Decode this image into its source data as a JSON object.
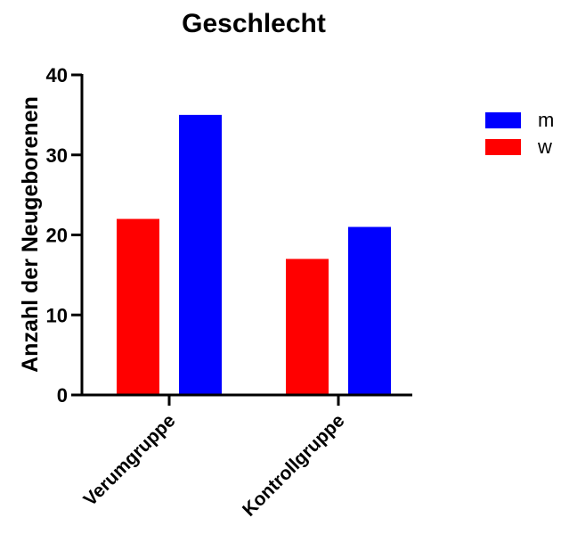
{
  "chart_data": {
    "type": "bar",
    "title": "Geschlecht",
    "ylabel": "Anzahl der Neugeborenen",
    "xlabel": "",
    "categories": [
      "Verumgruppe",
      "Kontrollgruppe"
    ],
    "series": [
      {
        "name": "w",
        "color": "#ff0000",
        "values": [
          22,
          17
        ]
      },
      {
        "name": "m",
        "color": "#0000ff",
        "values": [
          35,
          21
        ]
      }
    ],
    "legend_order": [
      "m",
      "w"
    ],
    "legend_position": "top-right",
    "ylim": [
      0,
      40
    ],
    "yticks": [
      0,
      10,
      20,
      30,
      40
    ],
    "grid": false
  }
}
